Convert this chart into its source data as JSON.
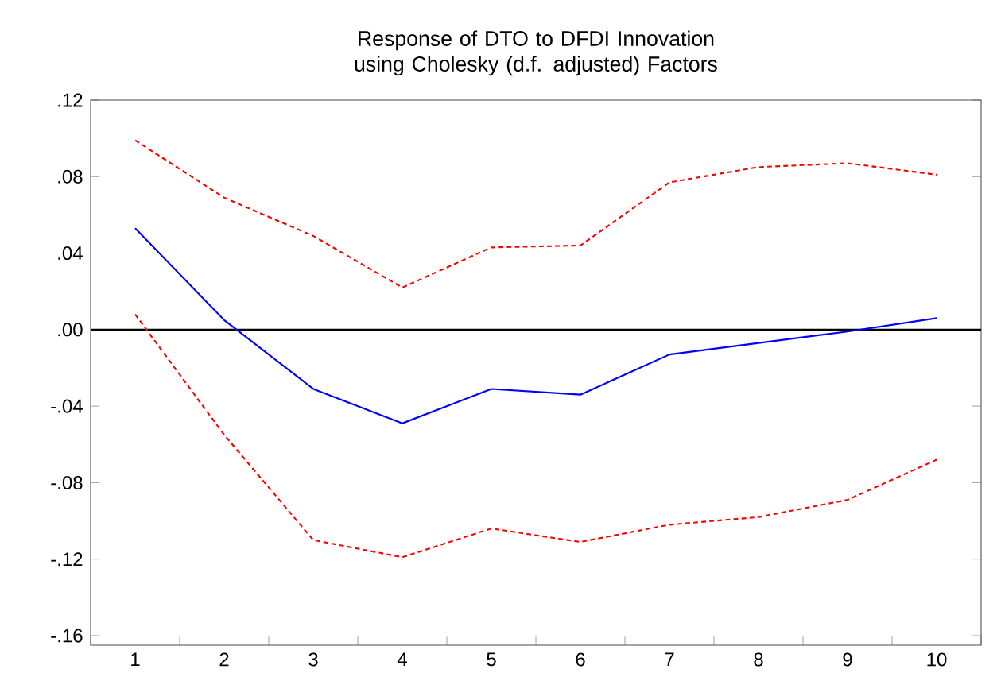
{
  "chart_data": {
    "type": "line",
    "title": "Response of DTO to DFDI Innovation using Cholesky (d.f. adjusted) Factors",
    "categories": [
      "1",
      "2",
      "3",
      "4",
      "5",
      "6",
      "7",
      "8",
      "9",
      "10"
    ],
    "series": [
      {
        "color": "#0000ff",
        "line_style": "solid",
        "values": [
          0.053,
          0.005,
          -0.031,
          -0.049,
          -0.031,
          -0.034,
          -0.013,
          -0.007,
          -0.001,
          0.006
        ]
      },
      {
        "color": "#ff0000",
        "line_style": "dashed",
        "values": [
          0.099,
          0.069,
          0.049,
          0.022,
          0.043,
          0.044,
          0.077,
          0.085,
          0.087,
          0.081
        ]
      },
      {
        "color": "#ff0000",
        "line_style": "dashed",
        "values": [
          0.008,
          -0.055,
          -0.11,
          -0.119,
          -0.104,
          -0.111,
          -0.102,
          -0.098,
          -0.089,
          -0.068
        ]
      }
    ],
    "ylim": [
      -0.165,
      0.12
    ],
    "yticks": [
      {
        "value": 0.12,
        "label": ".12"
      },
      {
        "value": 0.08,
        "label": ".08"
      },
      {
        "value": 0.04,
        "label": ".04"
      },
      {
        "value": 0,
        "label": ".00"
      },
      {
        "value": -0.04,
        "label": "-.04"
      },
      {
        "value": -0.08,
        "label": "-.08"
      },
      {
        "value": -0.12,
        "label": "-.12"
      },
      {
        "value": -0.16,
        "label": "-.16"
      }
    ],
    "ref_lines": [
      {
        "axis": "y",
        "value": 0,
        "color": "#000000"
      }
    ],
    "grid": false,
    "marker": "none"
  }
}
